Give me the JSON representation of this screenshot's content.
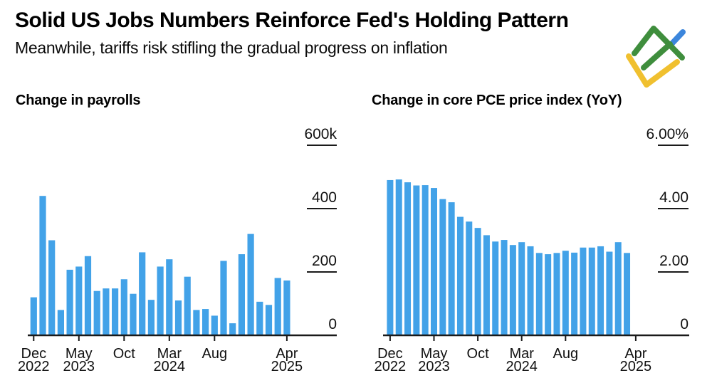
{
  "header": {
    "title": "Solid US Jobs Numbers Reinforce Fed's Holding Pattern",
    "subtitle": "Meanwhile, tariffs risk stifling the gradual progress on inflation"
  },
  "logo": {
    "name": "litefinance-logo",
    "colors": {
      "green": "#3F8E3D",
      "blue": "#3C86DC",
      "yellow": "#F0C02F"
    }
  },
  "colors": {
    "bar_blue": "#42A2E8",
    "axis": "#1a1a1a",
    "text": "#111111"
  },
  "chart_data": [
    {
      "type": "bar",
      "title": "Change in payrolls",
      "unit": "thousands of jobs (k)",
      "legend": "none",
      "grid": false,
      "ylim": [
        0,
        600
      ],
      "categories": [
        "Dec 2022",
        "Jan 2023",
        "Feb 2023",
        "Mar 2023",
        "Apr 2023",
        "May 2023",
        "Jun 2023",
        "Jul 2023",
        "Aug 2023",
        "Sep 2023",
        "Oct 2023",
        "Nov 2023",
        "Dec 2023",
        "Jan 2024",
        "Feb 2024",
        "Mar 2024",
        "Apr 2024",
        "May 2024",
        "Jun 2024",
        "Jul 2024",
        "Aug 2024",
        "Sep 2024",
        "Oct 2024",
        "Nov 2024",
        "Dec 2024",
        "Jan 2025",
        "Feb 2025",
        "Mar 2025",
        "Apr 2025"
      ],
      "values": [
        120,
        440,
        300,
        80,
        207,
        217,
        250,
        140,
        148,
        148,
        177,
        131,
        262,
        112,
        217,
        240,
        110,
        185,
        80,
        83,
        62,
        235,
        38,
        256,
        320,
        106,
        96,
        181,
        173
      ],
      "y_ticks": [
        {
          "value": 600,
          "label": "600k"
        },
        {
          "value": 400,
          "label": "400"
        },
        {
          "value": 200,
          "label": "200"
        },
        {
          "value": 0,
          "label": "0"
        }
      ],
      "x_ticks": [
        {
          "index": 0,
          "lines": [
            "Dec",
            "2022"
          ]
        },
        {
          "index": 5,
          "lines": [
            "May",
            "2023"
          ]
        },
        {
          "index": 10,
          "lines": [
            "Oct"
          ]
        },
        {
          "index": 15,
          "lines": [
            "Mar",
            "2024"
          ]
        },
        {
          "index": 20,
          "lines": [
            "Aug"
          ]
        },
        {
          "index": 28,
          "lines": [
            "Apr",
            "2025"
          ]
        }
      ]
    },
    {
      "type": "bar",
      "title": "Change in core PCE price index (YoY)",
      "unit": "percent",
      "legend": "none",
      "grid": false,
      "ylim": [
        0,
        6
      ],
      "categories": [
        "Dec 2022",
        "Jan 2023",
        "Feb 2023",
        "Mar 2023",
        "Apr 2023",
        "May 2023",
        "Jun 2023",
        "Jul 2023",
        "Aug 2023",
        "Sep 2023",
        "Oct 2023",
        "Nov 2023",
        "Dec 2023",
        "Jan 2024",
        "Feb 2024",
        "Mar 2024",
        "Apr 2024",
        "May 2024",
        "Jun 2024",
        "Jul 2024",
        "Aug 2024",
        "Sep 2024",
        "Oct 2024",
        "Nov 2024",
        "Dec 2024",
        "Jan 2025",
        "Feb 2025",
        "Mar 2025"
      ],
      "values": [
        4.9,
        4.92,
        4.83,
        4.73,
        4.74,
        4.65,
        4.3,
        4.2,
        3.74,
        3.59,
        3.39,
        3.16,
        2.96,
        3.01,
        2.85,
        2.94,
        2.81,
        2.6,
        2.56,
        2.6,
        2.67,
        2.61,
        2.77,
        2.77,
        2.81,
        2.64,
        2.94,
        2.6
      ],
      "y_ticks": [
        {
          "value": 6,
          "label": "6.00%"
        },
        {
          "value": 4,
          "label": "4.00"
        },
        {
          "value": 2,
          "label": "2.00"
        },
        {
          "value": 0,
          "label": "0"
        }
      ],
      "x_ticks": [
        {
          "index": 0,
          "lines": [
            "Dec",
            "2022"
          ]
        },
        {
          "index": 5,
          "lines": [
            "May",
            "2023"
          ]
        },
        {
          "index": 10,
          "lines": [
            "Oct"
          ]
        },
        {
          "index": 15,
          "lines": [
            "Mar",
            "2024"
          ]
        },
        {
          "index": 20,
          "lines": [
            "Aug"
          ]
        },
        {
          "index": 28,
          "lines": [
            "Apr",
            "2025"
          ]
        }
      ]
    }
  ]
}
